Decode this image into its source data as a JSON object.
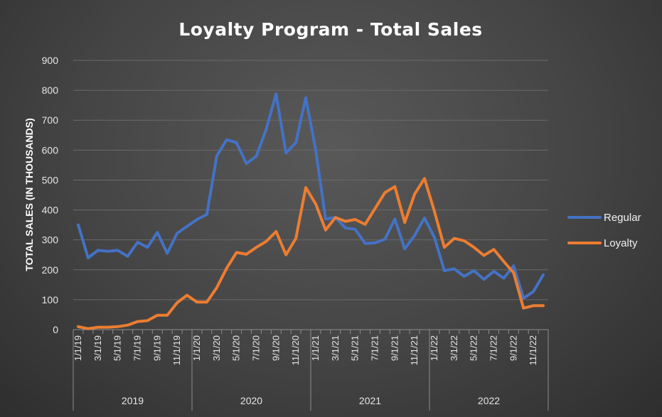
{
  "chart_data": {
    "type": "line",
    "title": "Loyalty Program - Total Sales",
    "ylabel": "TOTAL SALES (IN THOUSANDS)",
    "xlabel": "",
    "ylim": [
      0,
      900
    ],
    "yticks": [
      0,
      100,
      200,
      300,
      400,
      500,
      600,
      700,
      800,
      900
    ],
    "grid": true,
    "legend_position": "right",
    "x": [
      "1/1/19",
      "2/1/19",
      "3/1/19",
      "4/1/19",
      "5/1/19",
      "6/1/19",
      "7/1/19",
      "8/1/19",
      "9/1/19",
      "10/1/19",
      "11/1/19",
      "12/1/19",
      "1/1/20",
      "2/1/20",
      "3/1/20",
      "4/1/20",
      "5/1/20",
      "6/1/20",
      "7/1/20",
      "8/1/20",
      "9/1/20",
      "10/1/20",
      "11/1/20",
      "12/1/20",
      "1/1/21",
      "2/1/21",
      "3/1/21",
      "4/1/21",
      "5/1/21",
      "6/1/21",
      "7/1/21",
      "8/1/21",
      "9/1/21",
      "10/1/21",
      "11/1/21",
      "12/1/21",
      "1/1/22",
      "2/1/22",
      "3/1/22",
      "4/1/22",
      "5/1/22",
      "6/1/22",
      "7/1/22",
      "8/1/22",
      "9/1/22",
      "10/1/22",
      "11/1/22",
      "12/1/22"
    ],
    "x_tick_labels": [
      "1/1/19",
      "3/1/19",
      "5/1/19",
      "7/1/19",
      "9/1/19",
      "11/1/19",
      "1/1/20",
      "3/1/20",
      "5/1/20",
      "7/1/20",
      "9/1/20",
      "11/1/20",
      "1/1/21",
      "3/1/21",
      "5/1/21",
      "7/1/21",
      "9/1/21",
      "11/1/21",
      "1/1/22",
      "3/1/22",
      "5/1/22",
      "7/1/22",
      "9/1/22",
      "11/1/22"
    ],
    "year_groups": [
      "2019",
      "2020",
      "2021",
      "2022"
    ],
    "series": [
      {
        "name": "Regular",
        "color": "#4472C4",
        "values": [
          350,
          240,
          265,
          262,
          265,
          245,
          292,
          275,
          325,
          255,
          322,
          345,
          368,
          385,
          580,
          635,
          625,
          555,
          580,
          670,
          788,
          590,
          625,
          775,
          600,
          370,
          375,
          340,
          335,
          288,
          290,
          302,
          370,
          270,
          315,
          373,
          308,
          197,
          203,
          178,
          197,
          168,
          195,
          172,
          213,
          105,
          127,
          183
        ]
      },
      {
        "name": "Loyalty",
        "color": "#ED7D31",
        "values": [
          10,
          3,
          8,
          8,
          10,
          15,
          27,
          30,
          48,
          48,
          90,
          115,
          92,
          92,
          140,
          205,
          258,
          252,
          275,
          295,
          328,
          250,
          305,
          475,
          420,
          333,
          375,
          362,
          368,
          352,
          405,
          458,
          478,
          358,
          453,
          505,
          395,
          275,
          305,
          297,
          275,
          248,
          268,
          228,
          190,
          72,
          80,
          80
        ]
      }
    ]
  }
}
